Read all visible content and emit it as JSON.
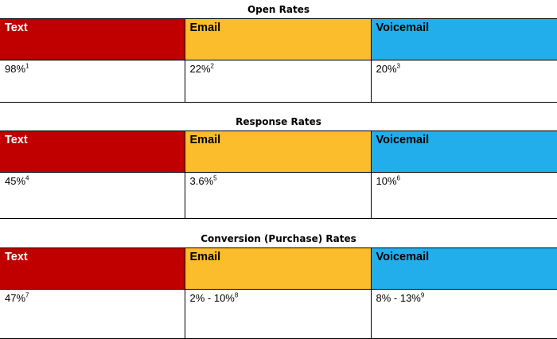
{
  "colors": {
    "text_header": "#c00000",
    "email_header": "#fbbd2b",
    "voicemail_header": "#22aeeb"
  },
  "sections": [
    {
      "title": "Open Rates",
      "headers": [
        "Text",
        "Email",
        "Voicemail"
      ],
      "values": [
        {
          "value": "98%",
          "note": "1"
        },
        {
          "value": "22%",
          "note": "2"
        },
        {
          "value": "20%",
          "note": "3"
        }
      ]
    },
    {
      "title": "Response Rates",
      "headers": [
        "Text",
        "Email",
        "Voicemail"
      ],
      "values": [
        {
          "value": "45%",
          "note": "4"
        },
        {
          "value": "3.6%",
          "note": "5"
        },
        {
          "value": "10%",
          "note": "6"
        }
      ]
    },
    {
      "title": "Conversion (Purchase) Rates",
      "headers": [
        "Text",
        "Email",
        "Voicemail"
      ],
      "values": [
        {
          "value": "47%",
          "note": "7"
        },
        {
          "value": "2% - 10%",
          "note": "8"
        },
        {
          "value": "8% - 13%",
          "note": "9"
        }
      ]
    }
  ]
}
